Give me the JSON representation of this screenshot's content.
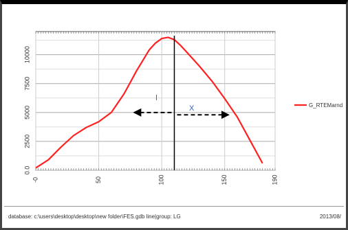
{
  "chart_data": {
    "type": "line",
    "title": "",
    "xlabel": "",
    "ylabel": "",
    "xlim": [
      0,
      190
    ],
    "ylim": [
      0,
      12000
    ],
    "x_ticks": [
      0,
      50,
      100,
      150,
      190
    ],
    "x_tick_labels": [
      "-0",
      "50",
      "100",
      "150",
      "190"
    ],
    "y_ticks": [
      0,
      2500,
      5000,
      7500,
      10000
    ],
    "y_tick_labels": [
      "0.0",
      "2500",
      "5000",
      "7500",
      "10000"
    ],
    "grid": true,
    "legend": "right",
    "series": [
      {
        "name": "G_RTEMarnd",
        "color": "#ff2020",
        "x": [
          0,
          10,
          20,
          30,
          40,
          50,
          60,
          70,
          75,
          80,
          85,
          90,
          95,
          100,
          105,
          110,
          115,
          120,
          130,
          140,
          150,
          160,
          170,
          180
        ],
        "y": [
          200,
          900,
          2000,
          3000,
          3700,
          4200,
          5000,
          6600,
          7600,
          8600,
          9500,
          10400,
          11000,
          11400,
          11500,
          11300,
          10800,
          10200,
          9000,
          7700,
          6200,
          4600,
          2600,
          600
        ]
      }
    ],
    "annotations": {
      "peak_x": 110,
      "left_arrow": {
        "x_start": 75,
        "x_end": 110,
        "y": 5000,
        "label": "l"
      },
      "right_arrow": {
        "x_start": 110,
        "x_end": 155,
        "y": 4800,
        "label": "X"
      }
    }
  },
  "status": {
    "path": "database: c:\\users\\desktop\\desktop\\new folder\\FES.gdb  line|group: LG",
    "time": "2013/08/"
  }
}
